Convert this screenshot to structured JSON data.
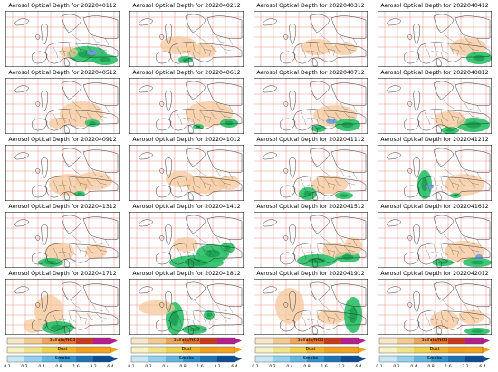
{
  "figure": {
    "title_prefix": "Aerosol Optical Depth for ",
    "dates": [
      "2022040112",
      "2022040212",
      "2022040312",
      "2022040412",
      "2022040512",
      "2022040612",
      "2022040712",
      "2022040812",
      "2022040912",
      "2022041012",
      "2022041112",
      "2022041212",
      "2022041312",
      "2022041412",
      "2022041512",
      "2022041612",
      "2022041712",
      "2022041812",
      "2022041912",
      "2022042012"
    ],
    "titles": [
      "Aerosol Optical Depth for 2022040112",
      "Aerosol Optical Depth for 2022040212",
      "Aerosol Optical Depth for 2022040312",
      "Aerosol Optical Depth for 2022040412",
      "Aerosol Optical Depth for 2022040512",
      "Aerosol Optical Depth for 2022040612",
      "Aerosol Optical Depth for 2022040712",
      "Aerosol Optical Depth for 2022040812",
      "Aerosol Optical Depth for 2022040912",
      "Aerosol Optical Depth for 2022041012",
      "Aerosol Optical Depth for 2022041112",
      "Aerosol Optical Depth for 2022041212",
      "Aerosol Optical Depth for 2022041312",
      "Aerosol Optical Depth for 2022041412",
      "Aerosol Optical Depth for 2022041512",
      "Aerosol Optical Depth for 2022041612",
      "Aerosol Optical Depth for 2022041712",
      "Aerosol Optical Depth for 2022041812",
      "Aerosol Optical Depth for 2022041912",
      "Aerosol Optical Depth for 2022042012"
    ]
  },
  "legend": {
    "layers": [
      "Sulfate/NO3",
      "Dust",
      "Smoke"
    ],
    "ticks": [
      "0.1",
      "0.2",
      "0.4",
      "0.8",
      "1.6",
      "3.2",
      "6.4"
    ],
    "colors": {
      "sulfate": [
        "#f7e7c8",
        "#f2c990",
        "#f0a35a",
        "#e4702c",
        "#c83a1e",
        "#b51f8e"
      ],
      "dust": [
        "#f7f3c2",
        "#f0e48a",
        "#eed44a",
        "#f2b82a",
        "#f3a01b",
        "#f5a41e"
      ],
      "smoke": [
        "#c7e9f6",
        "#93d0ef",
        "#5fb6e5",
        "#2f93d0",
        "#1d74b8",
        "#0c4e96"
      ],
      "map_dust": "#f5c79a",
      "map_green": "#2fc06a",
      "map_green_dark": "#169c4e",
      "map_blue": "#6fa0e0",
      "border": "#e0473f",
      "coast": "#222222"
    }
  }
}
